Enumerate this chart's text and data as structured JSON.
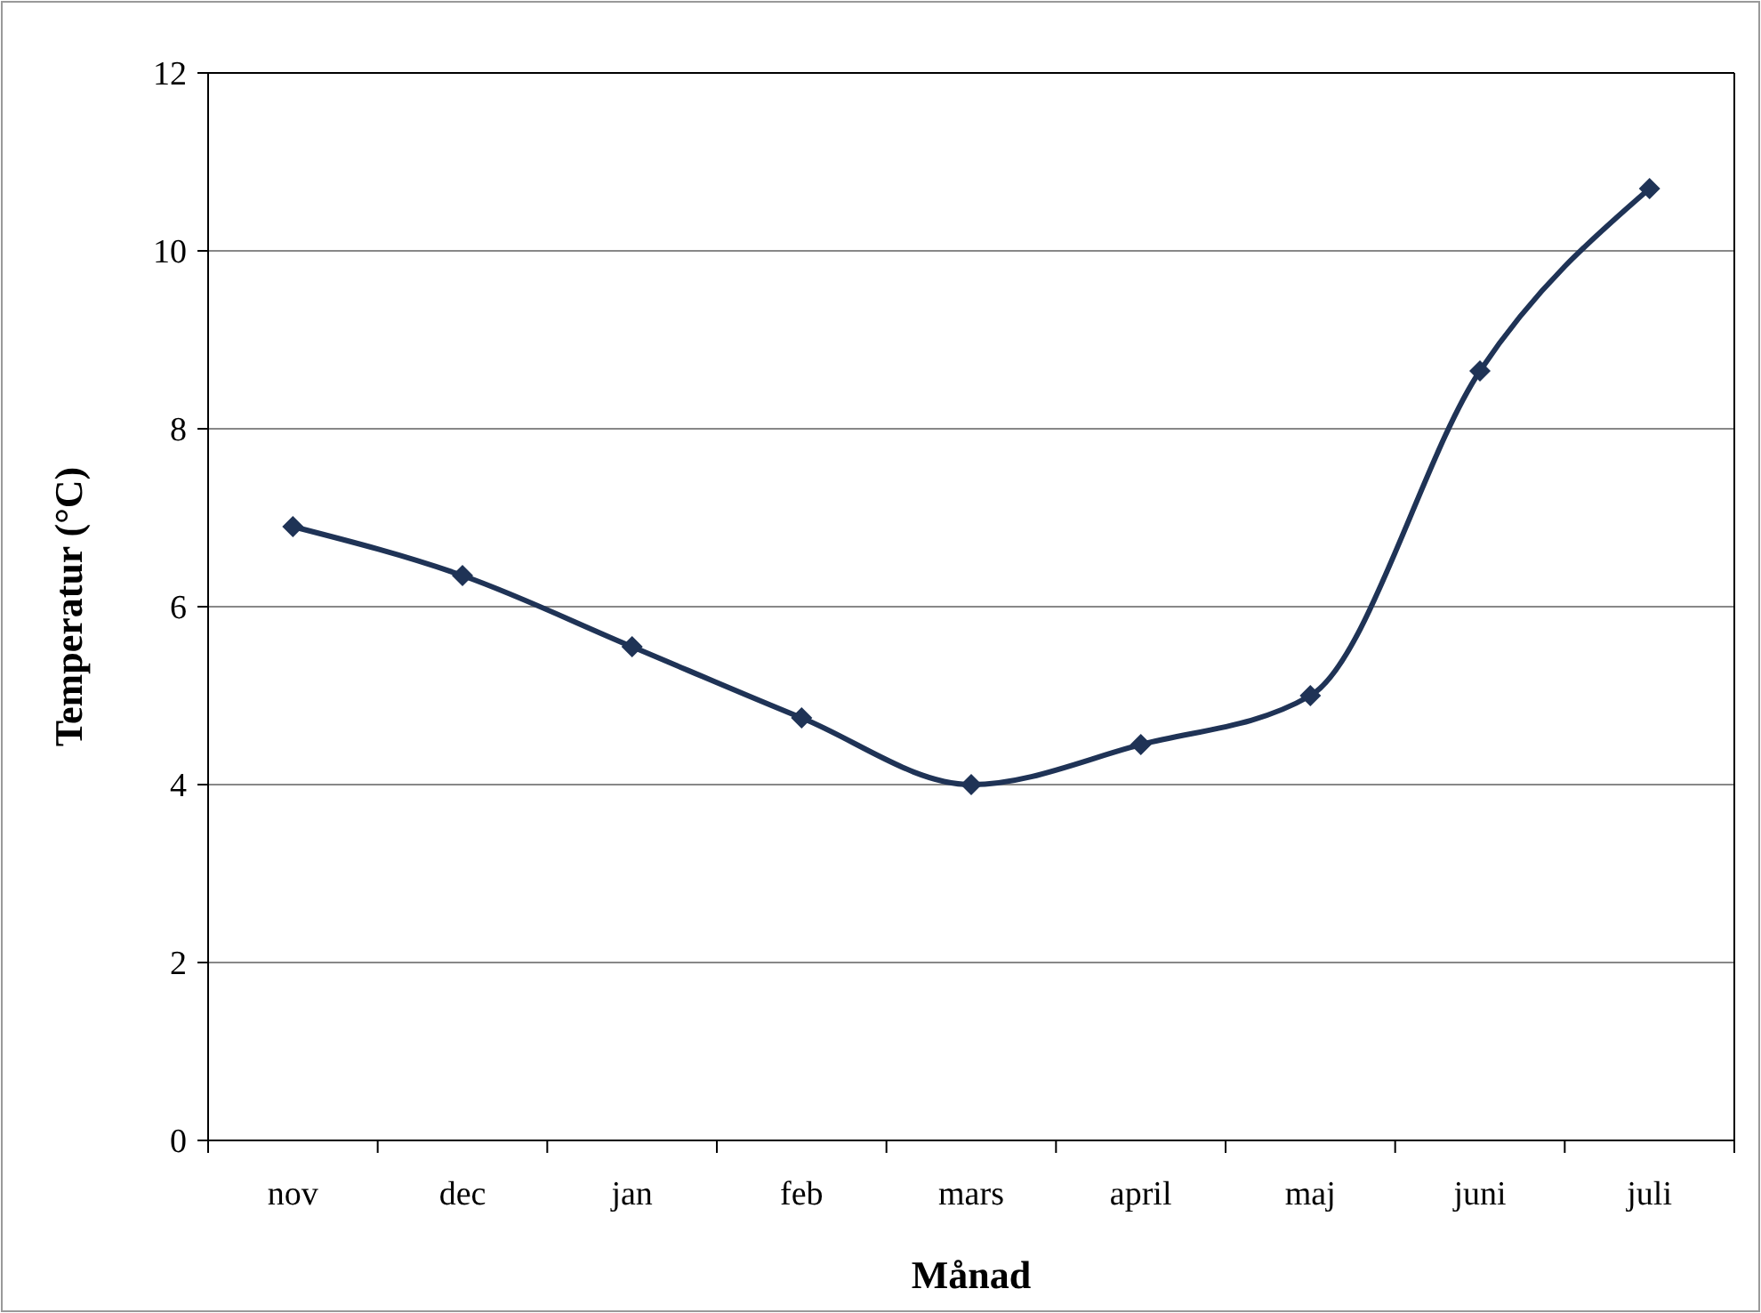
{
  "chart_data": {
    "type": "line",
    "xlabel": "Månad",
    "ylabel": "Temperatur (°C)",
    "categories": [
      "nov",
      "dec",
      "jan",
      "feb",
      "mars",
      "april",
      "maj",
      "juni",
      "juli"
    ],
    "series": [
      {
        "color": "#1f3356",
        "values": [
          6.9,
          6.35,
          5.55,
          4.75,
          4.0,
          4.45,
          5.0,
          8.65,
          10.7
        ]
      }
    ],
    "ylim": [
      0,
      12
    ],
    "yticks": [
      0,
      2,
      4,
      6,
      8,
      10,
      12
    ],
    "grid": "y",
    "marker": "diamond",
    "line_style": "solid"
  }
}
